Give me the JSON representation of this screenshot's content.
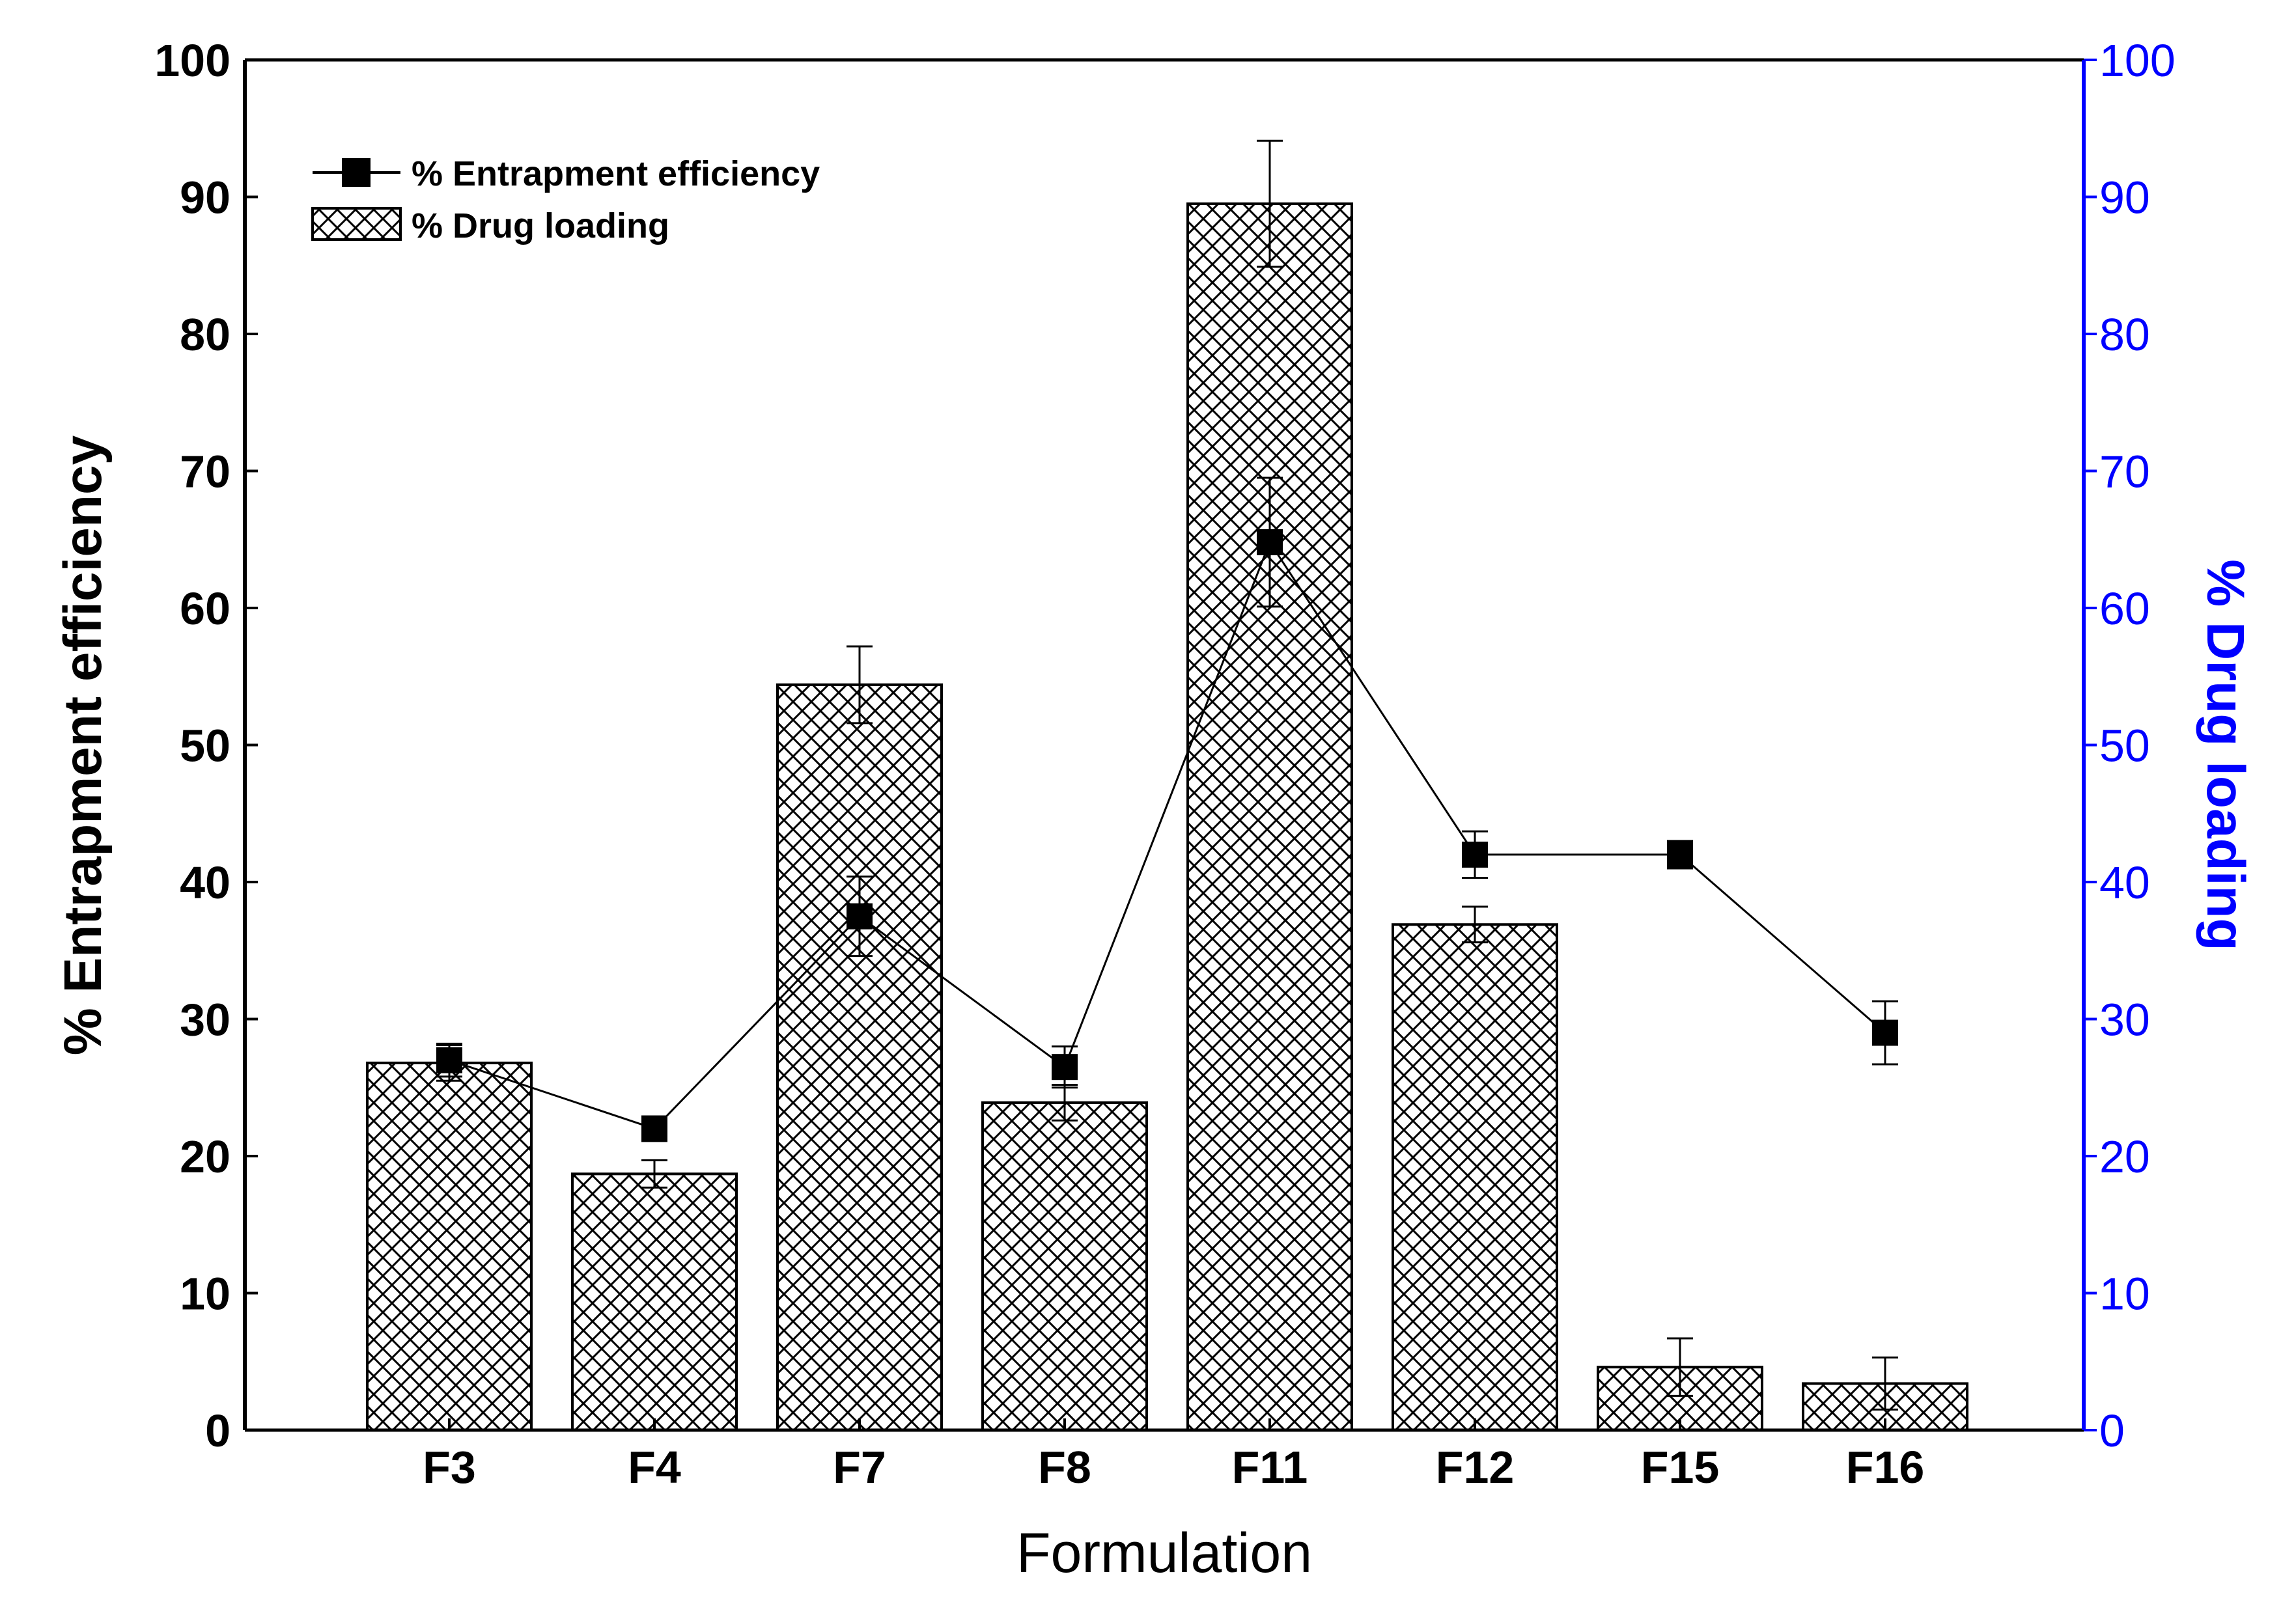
{
  "chart_data": {
    "type": "bar+line",
    "xlabel": "Formulation",
    "ylabel_left": "% Entrapment efficiency",
    "ylabel_right": "% Drug loading",
    "ylim_left": [
      0,
      100
    ],
    "ylim_right": [
      0,
      100
    ],
    "yticks": [
      "0",
      "10",
      "20",
      "30",
      "40",
      "50",
      "60",
      "70",
      "80",
      "90",
      "100"
    ],
    "categories": [
      "F3",
      "F4",
      "F7",
      "F8",
      "F11",
      "F12",
      "F15",
      "F16"
    ],
    "series": [
      {
        "name": "% Entrapment efficiency",
        "kind": "line",
        "axis": "left",
        "values": [
          27.0,
          22.0,
          37.5,
          26.5,
          64.8,
          42.0,
          42.0,
          29.0
        ],
        "errors": [
          1.2,
          0.9,
          2.9,
          1.5,
          4.7,
          1.7,
          1.0,
          2.3
        ]
      },
      {
        "name": "% Drug loading",
        "kind": "bar",
        "axis": "right",
        "values": [
          26.8,
          18.7,
          54.4,
          23.9,
          89.5,
          36.9,
          4.6,
          3.4
        ],
        "errors": [
          1.3,
          1.0,
          2.8,
          1.3,
          4.6,
          1.3,
          2.1,
          1.9
        ]
      }
    ],
    "legend": {
      "position": "top-left",
      "entries": [
        "% Entrapment efficiency",
        "% Drug loading"
      ]
    },
    "colors": {
      "left_axis": "#000000",
      "right_axis": "#0000ff",
      "bar_fill_pattern": "crosshatch",
      "line": "#000000"
    }
  }
}
